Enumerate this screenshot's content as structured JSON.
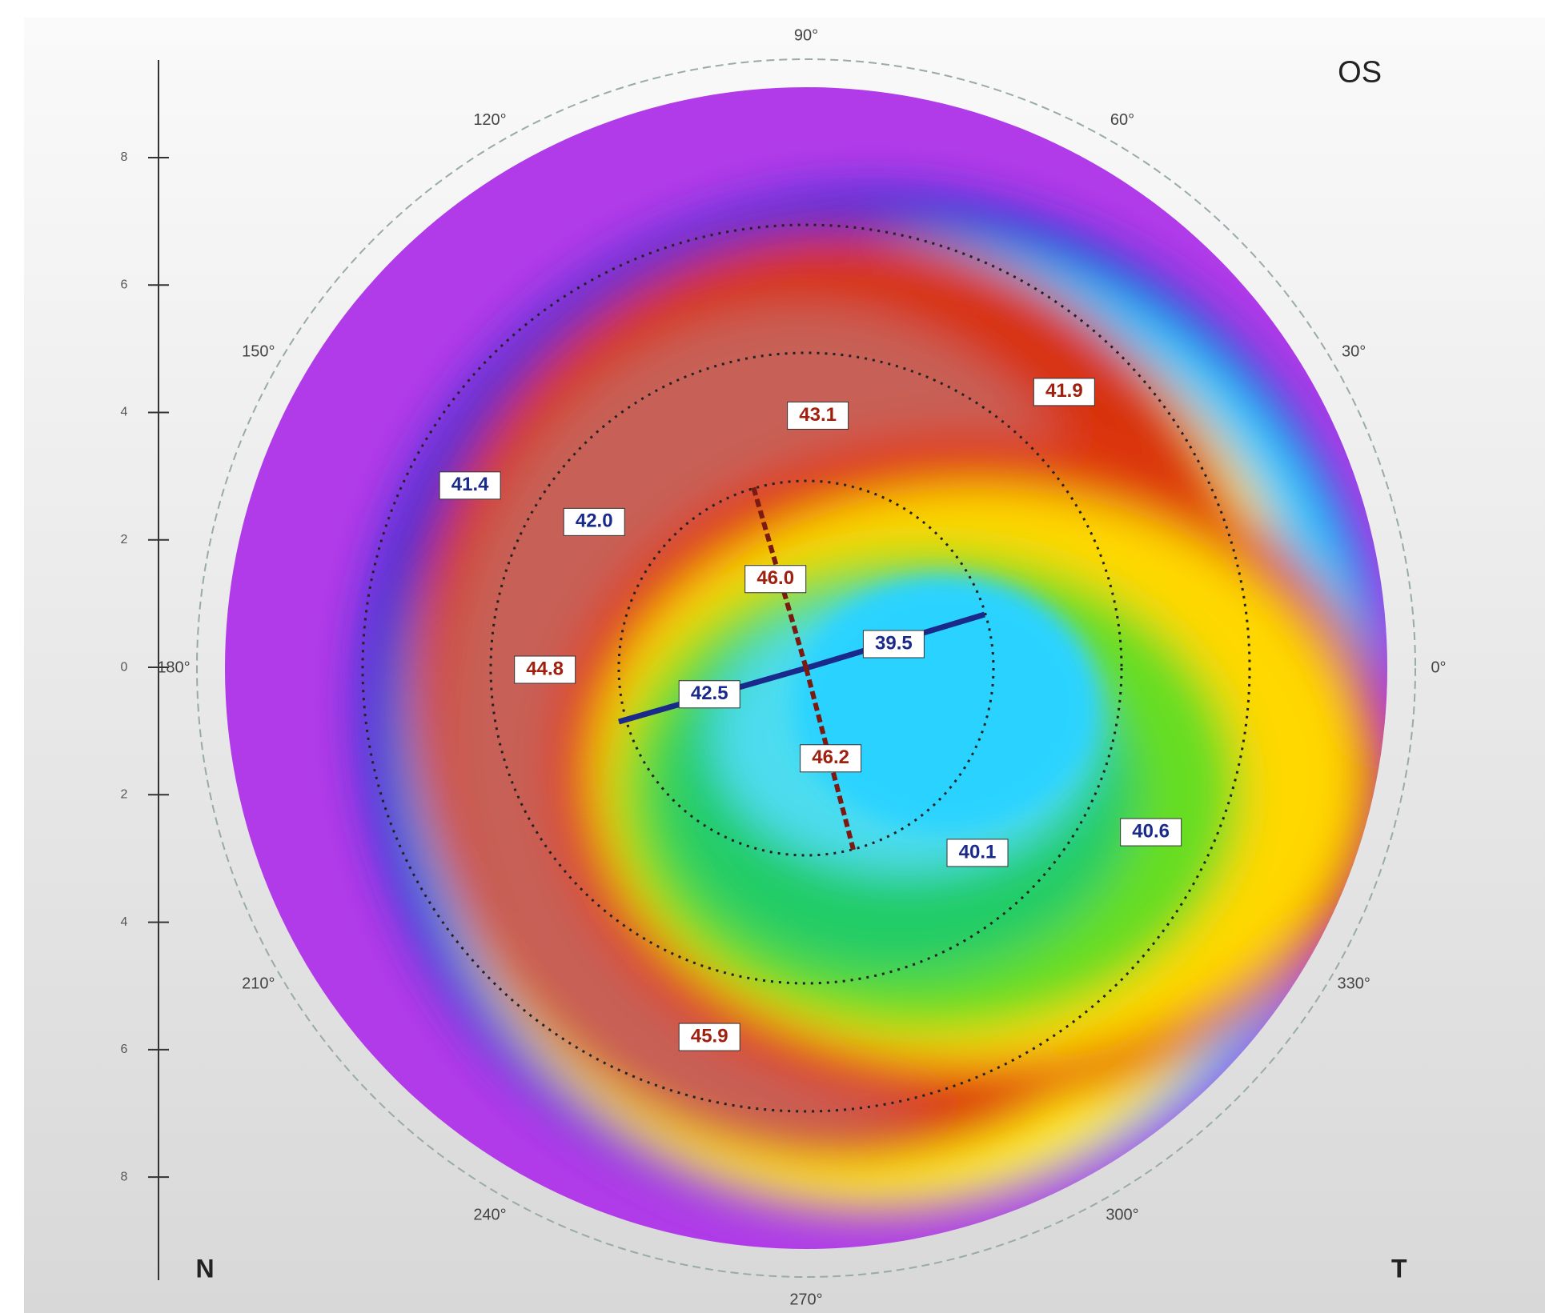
{
  "header": {
    "eye": "OS"
  },
  "orientation": {
    "nasal": "N",
    "temporal": "T"
  },
  "angle_labels": [
    "90°",
    "60°",
    "30°",
    "0°",
    "330°",
    "300°",
    "270°",
    "240°",
    "210°",
    "180°",
    "150°",
    "120°"
  ],
  "scale_labels": [
    "8",
    "6",
    "4",
    "2",
    "0",
    "2",
    "4",
    "6",
    "8"
  ],
  "map_labels": [
    "43.1",
    "41.9",
    "41.4",
    "42.0",
    "46.0",
    "39.5",
    "44.8",
    "42.5",
    "46.2",
    "40.1",
    "40.6",
    "45.9"
  ]
}
